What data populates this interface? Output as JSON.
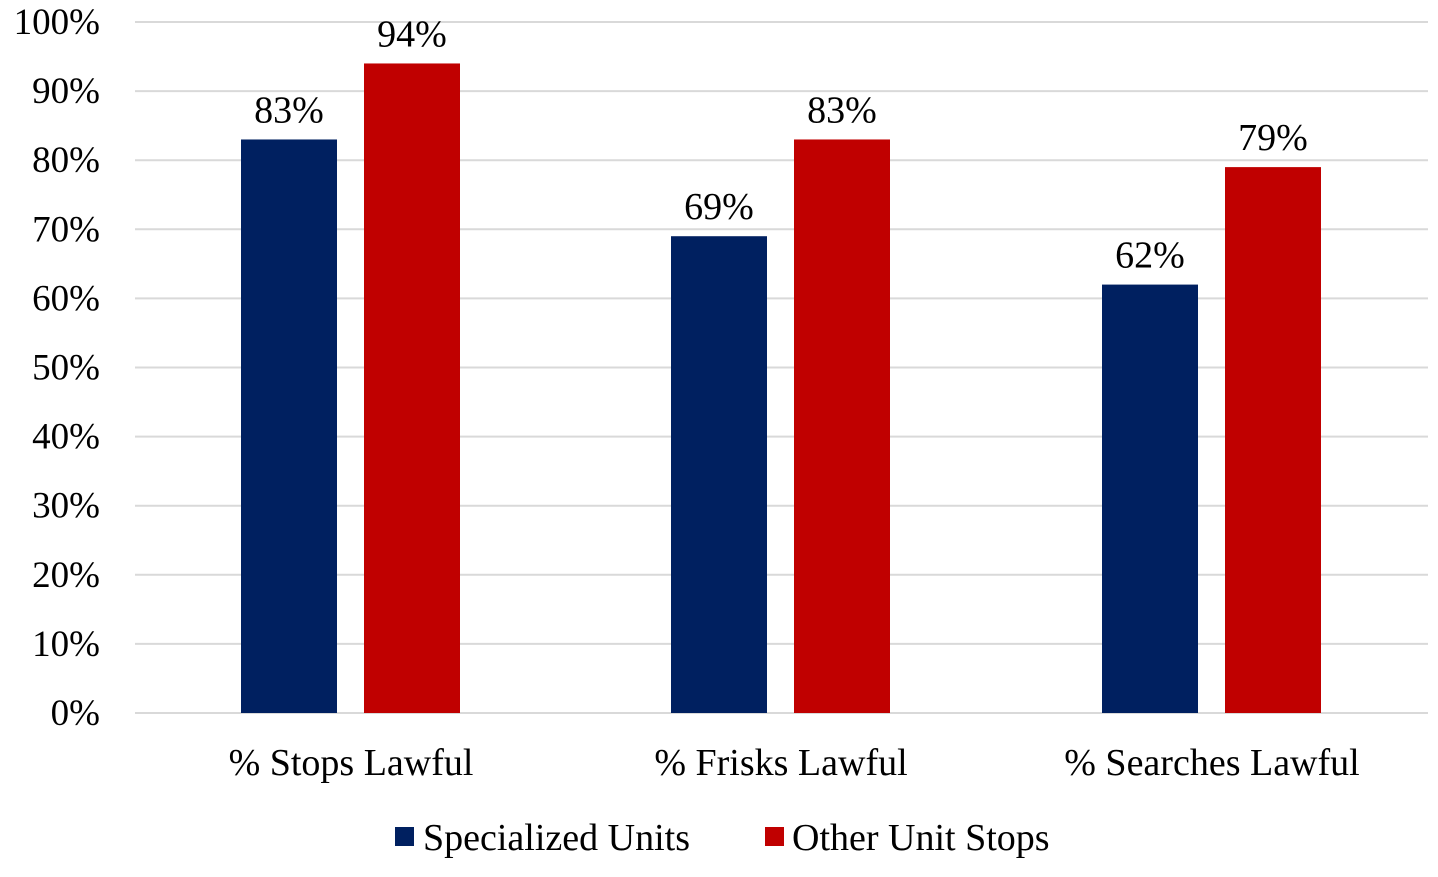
{
  "chart_data": {
    "type": "bar",
    "title": "",
    "xlabel": "",
    "ylabel": "",
    "categories": [
      "% Stops Lawful",
      "% Frisks Lawful",
      "% Searches Lawful"
    ],
    "series": [
      {
        "name": "Specialized Units",
        "values": [
          83,
          69,
          62
        ],
        "labels": [
          "83%",
          "69%",
          "62%"
        ],
        "color": "#002060"
      },
      {
        "name": "Other Unit Stops",
        "values": [
          94,
          83,
          79
        ],
        "labels": [
          "94%",
          "83%",
          "79%"
        ],
        "color": "#C00000"
      }
    ],
    "ylim": [
      0,
      100
    ],
    "yticks": [
      0,
      10,
      20,
      30,
      40,
      50,
      60,
      70,
      80,
      90,
      100
    ],
    "ytick_labels": [
      "0%",
      "10%",
      "20%",
      "30%",
      "40%",
      "50%",
      "60%",
      "70%",
      "80%",
      "90%",
      "100%"
    ],
    "grid": true,
    "gridline_color": "#D9D9D9",
    "legend_position": "bottom"
  }
}
